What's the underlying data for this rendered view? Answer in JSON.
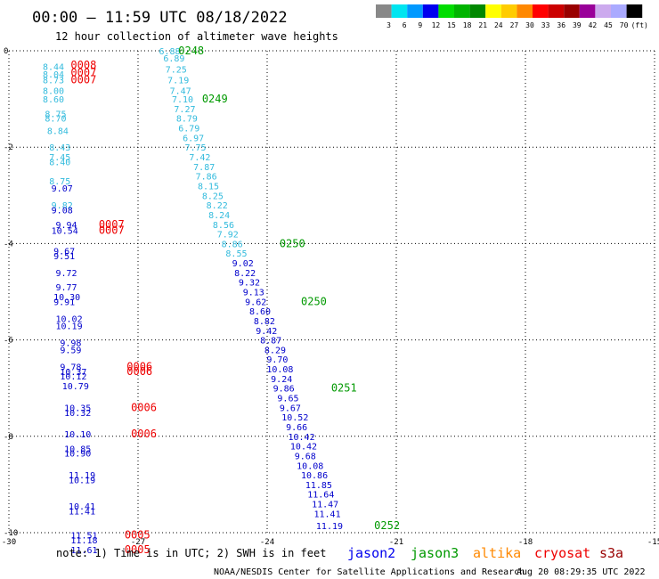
{
  "header": {
    "title": "00:00 – 11:59 UTC 08/18/2022",
    "subtitle": "12 hour collection of altimeter wave heights"
  },
  "colorbar": {
    "labels": [
      "3",
      "6",
      "9",
      "12",
      "15",
      "18",
      "21",
      "24",
      "27",
      "30",
      "33",
      "36",
      "39",
      "42",
      "45",
      "70",
      "(ft)"
    ],
    "colors": [
      "#888888",
      "#00e5f0",
      "#0099ff",
      "#0000ee",
      "#00dd00",
      "#00b400",
      "#008800",
      "#ffff00",
      "#ffcc00",
      "#ff8800",
      "#ff0000",
      "#cc0000",
      "#990000",
      "#990099",
      "#ccaaee",
      "#aaaaff",
      "#000000"
    ]
  },
  "footer": {
    "note": "note: 1) Time is in UTC; 2) SWH is in feet",
    "credit": "NOAA/NESDIS Center for Satellite Applications and Research",
    "timestamp": "Aug 20 08:29:35 UTC 2022"
  },
  "chart_data": {
    "type": "scatter",
    "xlim": [
      -30,
      -15
    ],
    "ylim": [
      -10,
      0
    ],
    "x_ticks": [
      -30,
      -27,
      -24,
      -21,
      -18,
      -15
    ],
    "x_tick_labels": [
      "-30",
      "-27",
      "-24",
      "-21",
      "-18",
      "-15"
    ],
    "y_ticks": [
      0,
      -2,
      -4,
      -6,
      -8,
      -10
    ],
    "y_tick_labels": [
      "0",
      "-2",
      "-4",
      "-6",
      "-8",
      "-10"
    ],
    "grid": true,
    "legend": [
      {
        "name": "jason2",
        "color": "#0000ee"
      },
      {
        "name": "jason3",
        "color": "#009900"
      },
      {
        "name": "altika",
        "color": "#ff8800"
      },
      {
        "name": "cryosat",
        "color": "#ee0000"
      },
      {
        "name": "s3a",
        "color": "#990000"
      }
    ],
    "series": [
      {
        "name": "altika",
        "color": "#33bbdd",
        "points": [
          {
            "x": -27.3,
            "y": 0.0,
            "v": "6.88"
          },
          {
            "x": -27.2,
            "y": -0.15,
            "v": "6.89"
          },
          {
            "x": -27.15,
            "y": -0.38,
            "v": "7.25"
          },
          {
            "x": -27.1,
            "y": -0.6,
            "v": "7.19"
          },
          {
            "x": -27.05,
            "y": -0.82,
            "v": "7.47"
          },
          {
            "x": -27.0,
            "y": -1.0,
            "v": "7.10"
          },
          {
            "x": -26.95,
            "y": -1.2,
            "v": "7.27"
          },
          {
            "x": -26.9,
            "y": -1.4,
            "v": "8.79"
          },
          {
            "x": -26.85,
            "y": -1.6,
            "v": "6.79"
          },
          {
            "x": -26.75,
            "y": -1.8,
            "v": "6.97"
          },
          {
            "x": -26.7,
            "y": -2.0,
            "v": "7.75"
          },
          {
            "x": -26.6,
            "y": -2.2,
            "v": "7.42"
          },
          {
            "x": -26.5,
            "y": -2.4,
            "v": "7.87"
          },
          {
            "x": -26.45,
            "y": -2.6,
            "v": "7.86"
          },
          {
            "x": -26.4,
            "y": -2.8,
            "v": "8.15"
          },
          {
            "x": -26.3,
            "y": -3.0,
            "v": "8.25"
          },
          {
            "x": -26.2,
            "y": -3.2,
            "v": "8.22"
          },
          {
            "x": -26.15,
            "y": -3.4,
            "v": "8.24"
          },
          {
            "x": -26.05,
            "y": -3.6,
            "v": "8.56"
          },
          {
            "x": -25.95,
            "y": -3.8,
            "v": "7.92"
          },
          {
            "x": -25.85,
            "y": -4.0,
            "v": "8.86"
          },
          {
            "x": -25.75,
            "y": -4.2,
            "v": "8.55"
          },
          {
            "x": -30.0,
            "y": -0.32,
            "v": "8.44"
          },
          {
            "x": -30.0,
            "y": -0.48,
            "v": "8.04"
          },
          {
            "x": -30.0,
            "y": -0.6,
            "v": "8.73"
          },
          {
            "x": -30.0,
            "y": -0.82,
            "v": "8.00"
          },
          {
            "x": -30.0,
            "y": -1.0,
            "v": "8.60"
          },
          {
            "x": -29.95,
            "y": -1.3,
            "v": "8.75"
          },
          {
            "x": -29.95,
            "y": -1.4,
            "v": "8.70"
          },
          {
            "x": -29.9,
            "y": -1.65,
            "v": "8.84"
          },
          {
            "x": -29.85,
            "y": -2.0,
            "v": "8.43"
          },
          {
            "x": -29.85,
            "y": -2.2,
            "v": "7.45"
          },
          {
            "x": -29.85,
            "y": -2.3,
            "v": "8.40"
          },
          {
            "x": -29.85,
            "y": -2.7,
            "v": "8.75"
          },
          {
            "x": -29.8,
            "y": -3.2,
            "v": "9.82"
          }
        ]
      },
      {
        "name": "jason2",
        "color": "#0000cc",
        "points": [
          {
            "x": -25.6,
            "y": -4.4,
            "v": "9.02"
          },
          {
            "x": -25.55,
            "y": -4.6,
            "v": "8.22"
          },
          {
            "x": -25.45,
            "y": -4.8,
            "v": "9.32"
          },
          {
            "x": -25.35,
            "y": -5.0,
            "v": "9.13"
          },
          {
            "x": -25.3,
            "y": -5.2,
            "v": "9.62"
          },
          {
            "x": -25.2,
            "y": -5.4,
            "v": "8.60"
          },
          {
            "x": -25.1,
            "y": -5.6,
            "v": "8.82"
          },
          {
            "x": -25.05,
            "y": -5.8,
            "v": "9.42"
          },
          {
            "x": -24.95,
            "y": -6.0,
            "v": "8.87"
          },
          {
            "x": -24.85,
            "y": -6.2,
            "v": "8.29"
          },
          {
            "x": -24.8,
            "y": -6.4,
            "v": "9.70"
          },
          {
            "x": -24.8,
            "y": -6.6,
            "v": "10.08"
          },
          {
            "x": -24.7,
            "y": -6.8,
            "v": "9.24"
          },
          {
            "x": -24.65,
            "y": -7.0,
            "v": "9.86"
          },
          {
            "x": -24.55,
            "y": -7.2,
            "v": "9.65"
          },
          {
            "x": -24.5,
            "y": -7.4,
            "v": "9.67"
          },
          {
            "x": -24.45,
            "y": -7.6,
            "v": "10.52"
          },
          {
            "x": -24.35,
            "y": -7.8,
            "v": "9.66"
          },
          {
            "x": -24.3,
            "y": -8.0,
            "v": "10.42"
          },
          {
            "x": -24.25,
            "y": -8.2,
            "v": "10.42"
          },
          {
            "x": -24.15,
            "y": -8.4,
            "v": "9.68"
          },
          {
            "x": -24.1,
            "y": -8.6,
            "v": "10.08"
          },
          {
            "x": -24.0,
            "y": -8.8,
            "v": "10.86"
          },
          {
            "x": -23.9,
            "y": -9.0,
            "v": "11.85"
          },
          {
            "x": -23.85,
            "y": -9.2,
            "v": "11.64"
          },
          {
            "x": -23.75,
            "y": -9.4,
            "v": "11.47"
          },
          {
            "x": -23.7,
            "y": -9.6,
            "v": "11.41"
          },
          {
            "x": -23.65,
            "y": -9.85,
            "v": "11.19"
          },
          {
            "x": -29.8,
            "y": -2.85,
            "v": "9.07"
          },
          {
            "x": -29.8,
            "y": -3.3,
            "v": "9.08"
          },
          {
            "x": -29.7,
            "y": -3.6,
            "v": "9.94"
          },
          {
            "x": -29.8,
            "y": -3.72,
            "v": "10.54"
          },
          {
            "x": -29.75,
            "y": -4.15,
            "v": "9.67"
          },
          {
            "x": -29.75,
            "y": -4.25,
            "v": "9.51"
          },
          {
            "x": -29.7,
            "y": -4.6,
            "v": "9.72"
          },
          {
            "x": -29.7,
            "y": -4.9,
            "v": "9.77"
          },
          {
            "x": -29.75,
            "y": -5.1,
            "v": "10.30"
          },
          {
            "x": -29.75,
            "y": -5.2,
            "v": "9.91"
          },
          {
            "x": -29.7,
            "y": -5.55,
            "v": "10.02"
          },
          {
            "x": -29.7,
            "y": -5.7,
            "v": "10.19"
          },
          {
            "x": -29.6,
            "y": -6.05,
            "v": "9.98"
          },
          {
            "x": -29.6,
            "y": -6.2,
            "v": "9.59"
          },
          {
            "x": -29.6,
            "y": -6.55,
            "v": "9.78"
          },
          {
            "x": -29.6,
            "y": -6.65,
            "v": "10.37"
          },
          {
            "x": -29.6,
            "y": -6.75,
            "v": "10.12"
          },
          {
            "x": -29.55,
            "y": -6.95,
            "v": "10.79"
          },
          {
            "x": -29.5,
            "y": -7.4,
            "v": "10.35"
          },
          {
            "x": -29.5,
            "y": -7.5,
            "v": "10.32"
          },
          {
            "x": -29.5,
            "y": -7.95,
            "v": "10.10"
          },
          {
            "x": -29.5,
            "y": -8.25,
            "v": "10.85"
          },
          {
            "x": -29.5,
            "y": -8.35,
            "v": "10.90"
          },
          {
            "x": -29.4,
            "y": -8.8,
            "v": "11.19"
          },
          {
            "x": -29.4,
            "y": -8.9,
            "v": "10.19"
          },
          {
            "x": -29.4,
            "y": -9.45,
            "v": "10.41"
          },
          {
            "x": -29.4,
            "y": -9.55,
            "v": "11.41"
          },
          {
            "x": -29.35,
            "y": -10.05,
            "v": "11.51"
          },
          {
            "x": -29.35,
            "y": -10.15,
            "v": "11.18"
          },
          {
            "x": -29.35,
            "y": -10.35,
            "v": "11.61"
          }
        ]
      }
    ],
    "pass_labels": [
      {
        "satellite": "jason3",
        "x": -26.85,
        "y": 0.0,
        "label": "0248"
      },
      {
        "satellite": "jason3",
        "x": -26.3,
        "y": -1.0,
        "label": "0249"
      },
      {
        "satellite": "jason3",
        "x": -24.5,
        "y": -4.0,
        "label": "0250"
      },
      {
        "satellite": "jason3",
        "x": -24.0,
        "y": -5.2,
        "label": "0250"
      },
      {
        "satellite": "jason3",
        "x": -23.3,
        "y": -7.0,
        "label": "0251"
      },
      {
        "satellite": "jason3",
        "x": -22.3,
        "y": -9.85,
        "label": "0252"
      },
      {
        "satellite": "cryosat",
        "x": -29.35,
        "y": -0.3,
        "label": "0008"
      },
      {
        "satellite": "cryosat",
        "x": -29.35,
        "y": -0.45,
        "label": "0007"
      },
      {
        "satellite": "cryosat",
        "x": -29.35,
        "y": -0.6,
        "label": "0007"
      },
      {
        "satellite": "cryosat",
        "x": -28.7,
        "y": -3.6,
        "label": "0007"
      },
      {
        "satellite": "cryosat",
        "x": -28.7,
        "y": -3.72,
        "label": "0007"
      },
      {
        "satellite": "cryosat",
        "x": -28.05,
        "y": -6.55,
        "label": "0006"
      },
      {
        "satellite": "cryosat",
        "x": -28.05,
        "y": -6.65,
        "label": "0006"
      },
      {
        "satellite": "cryosat",
        "x": -27.95,
        "y": -7.4,
        "label": "0006"
      },
      {
        "satellite": "cryosat",
        "x": -27.95,
        "y": -7.95,
        "label": "0006"
      },
      {
        "satellite": "cryosat",
        "x": -28.1,
        "y": -10.05,
        "label": "0005"
      },
      {
        "satellite": "cryosat",
        "x": -28.1,
        "y": -10.35,
        "label": "0005"
      }
    ]
  }
}
